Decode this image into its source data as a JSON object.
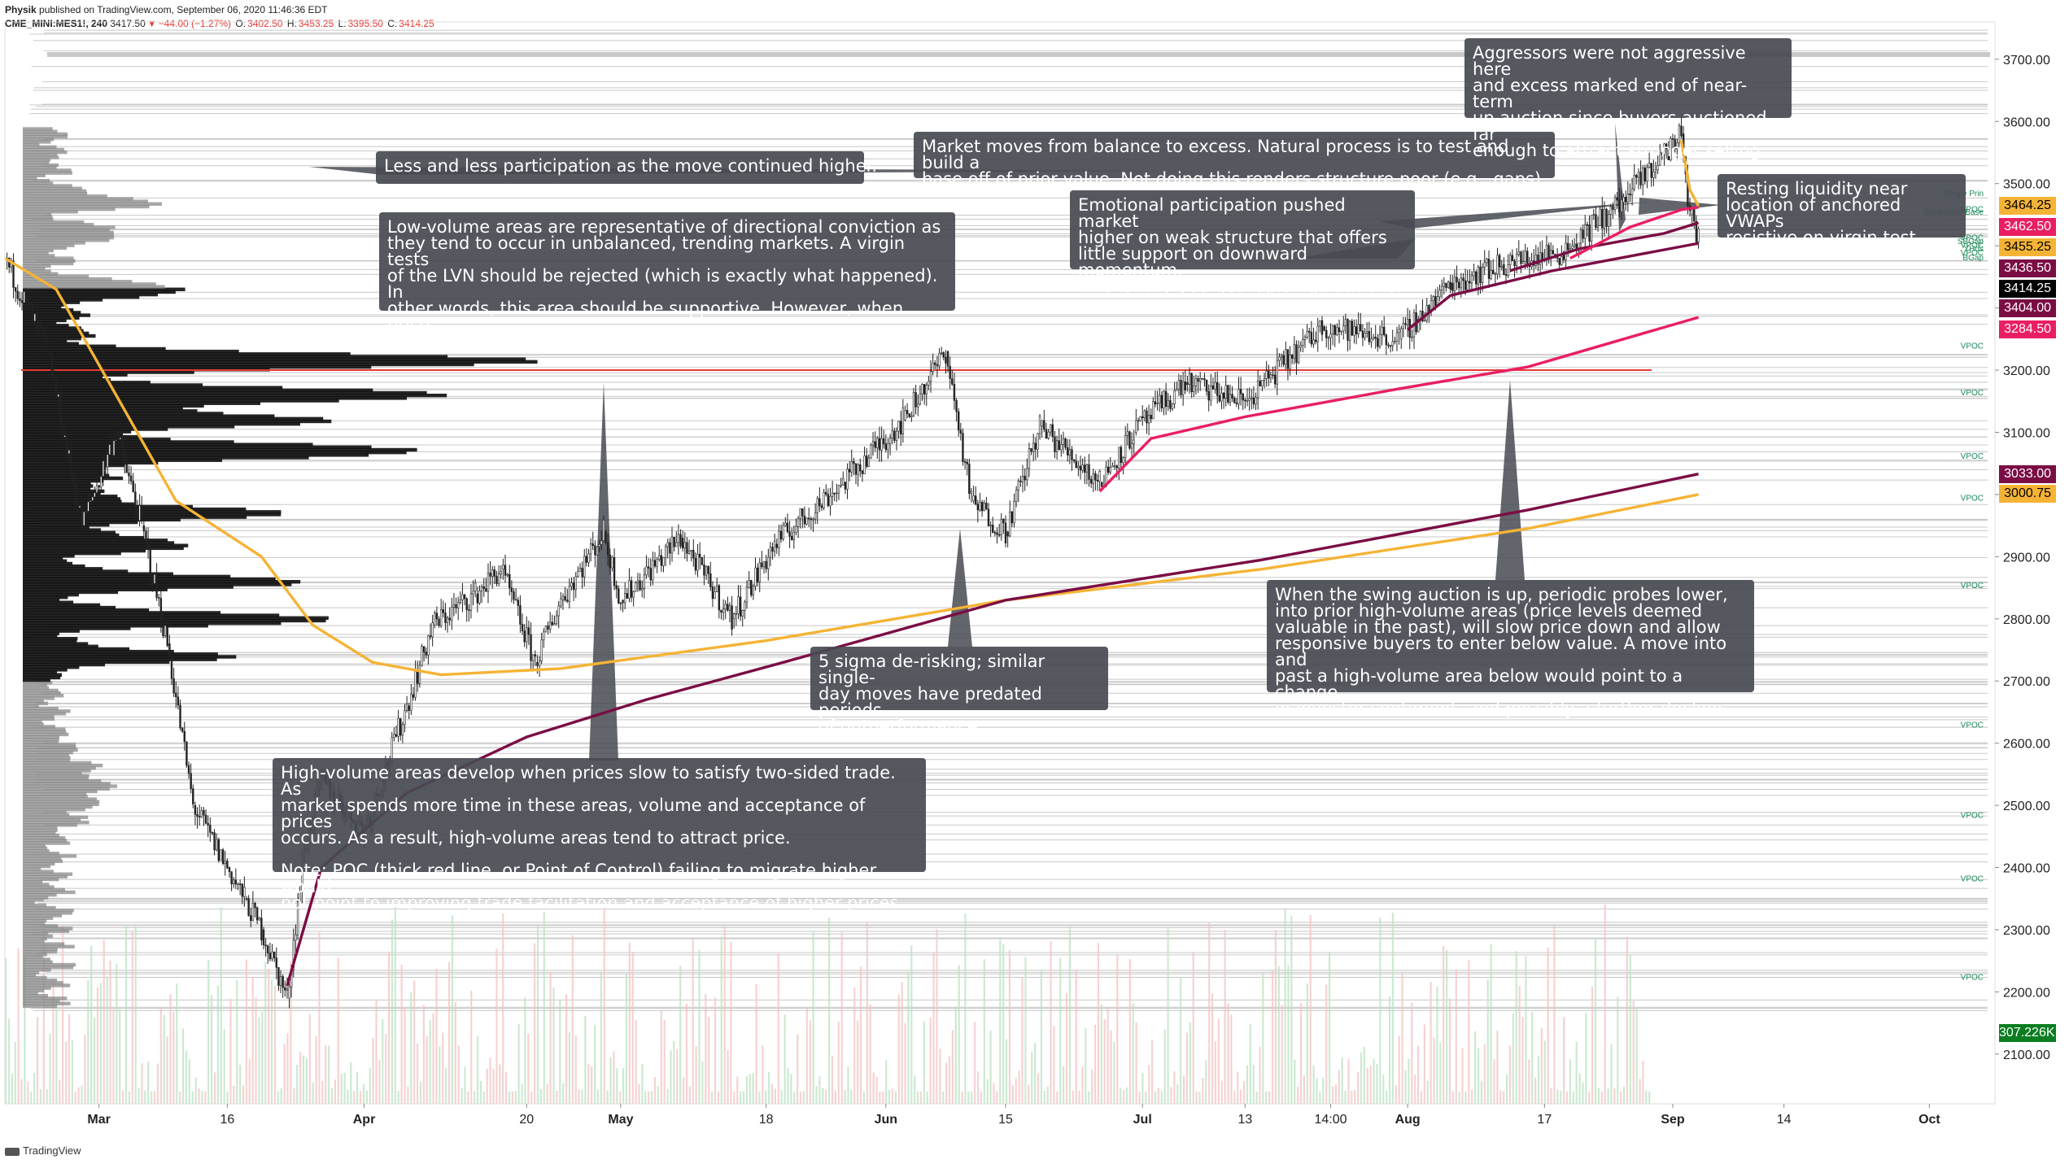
{
  "header": {
    "author": "Physik",
    "published": "published on TradingView.com, September 06, 2020 11:46:36 EDT",
    "symbol": "CME_MINI:MES1!, 240",
    "last": "3417.50",
    "change": "−44.00 (−1.27%)",
    "o_label": "O:",
    "o_value": "3402.50",
    "h_label": "H:",
    "h_value": "3453.25",
    "l_label": "L:",
    "l_value": "3395.50",
    "c_label": "C:",
    "c_value": "3414.25"
  },
  "footer": {
    "brand": "TradingView"
  },
  "colors": {
    "vwap_orange": "#f5b335",
    "vwap_maroon": "#7b0d45",
    "vwap_pink": "#e91e63",
    "poc_red": "#e53935",
    "annotation_bg": "#484a52"
  },
  "callouts": [
    {
      "id": "participation",
      "text": "Less and less participation as the move continued higher."
    },
    {
      "id": "lvn",
      "text": "Low-volume areas are representative of directional conviction as\nthey tend to occur in unbalanced, trending markets. A virgin tests\nof the LVN should be rejected (which is exactly what happened). In\nother words, this area should be supportive. However, when price\nauctions through this area, directional conviction has changed."
    },
    {
      "id": "balance",
      "text": "Market moves from balance to excess. Natural process is to test and build a\nbase off of prior value. Not doing this renders structure poor (e.g., gaps)."
    },
    {
      "id": "aggressors",
      "text": "Aggressors were not aggressive here\nand excess marked end of near-term\nup auction since buyers auctioned far\nenough to attract stronger selling."
    },
    {
      "id": "emotional",
      "text": "Emotional participation pushed market\nhigher on weak structure that offers\nlittle support on downward momentum.\nThis is why you get rapid liquidations."
    },
    {
      "id": "resting",
      "text": "Resting liquidity near\nlocation of anchored VWAPs\nresistive on virgin test."
    },
    {
      "id": "hva",
      "text": "High-volume areas develop when prices slow to satisfy two-sided trade. As\nmarket spends more time in these areas, volume and acceptance of prices\noccurs. As a result, high-volume areas tend to attract price.\n\nNote: POC (thick red line, or Point of Control) failing to migrate higher would\nnot point to improving trade facilitation and acceptance of higher prices."
    },
    {
      "id": "sigma",
      "text": "5 sigma de-risking; similar single-\nday moves have predated periods\nof outperformance."
    },
    {
      "id": "swing",
      "text": "When the swing auction is up, periodic probes lower,\ninto prior high-volume areas (price levels deemed\nvaluable in the past), will slow price down and allow\nresponsive buyers to enter below value. A move into and\npast a high-volume area below would point to a change\nin investor sentiment, and possibly a further decline."
    }
  ],
  "right_labels": [
    {
      "text": "Single Prin",
      "price": 3485
    },
    {
      "text": "VPOC",
      "price": 3460
    },
    {
      "text": "Supportive Base",
      "price": 3455.25
    },
    {
      "text": "VPOC",
      "price": 3414
    },
    {
      "text": "SBGap",
      "price": 3408
    },
    {
      "text": "VPOC",
      "price": 3402
    },
    {
      "text": "YHds",
      "price": 3396
    },
    {
      "text": "VPOC",
      "price": 3390
    },
    {
      "text": "BGap",
      "price": 3382
    },
    {
      "text": "VPOC",
      "price": 3240
    },
    {
      "text": "VPOC",
      "price": 3165
    },
    {
      "text": "VPOC",
      "price": 3063
    },
    {
      "text": "VPOC",
      "price": 2995
    },
    {
      "text": "VPOC",
      "price": 2855
    },
    {
      "text": "VPOC",
      "price": 2630
    },
    {
      "text": "VPOC",
      "price": 2485
    },
    {
      "text": "VPOC",
      "price": 2383
    },
    {
      "text": "VPOC",
      "price": 2225
    }
  ],
  "price_badges": [
    {
      "value": "3464.25",
      "price": 3464.25,
      "bg": "#f5b335",
      "fg": "#000000"
    },
    {
      "value": "3462.50",
      "price": 3430,
      "bg": "#e91e63",
      "fg": "#ffffff"
    },
    {
      "value": "3455.25",
      "price": 3397,
      "bg": "#f5b335",
      "fg": "#000000"
    },
    {
      "value": "3436.50",
      "price": 3364,
      "bg": "#7b0d45",
      "fg": "#ffffff"
    },
    {
      "value": "3414.25",
      "price": 3331,
      "bg": "#000000",
      "fg": "#ffffff"
    },
    {
      "value": "3404.00",
      "price": 3299,
      "bg": "#7b0d45",
      "fg": "#ffffff"
    },
    {
      "value": "3284.50",
      "price": 3266,
      "bg": "#e91e63",
      "fg": "#ffffff"
    },
    {
      "value": "3033.00",
      "price": 3033,
      "bg": "#7b0d45",
      "fg": "#ffffff"
    },
    {
      "value": "3000.75",
      "price": 3000.75,
      "bg": "#f5b335",
      "fg": "#000000"
    },
    {
      "value": "307.226K",
      "price": 2134,
      "bg": "#0a7d20",
      "fg": "#ffffff"
    }
  ],
  "chart_data": {
    "type": "line",
    "title": "",
    "xlabel": "",
    "ylabel": "",
    "ylim": [
      2020,
      3760
    ],
    "y_ticks": [
      "2100.00",
      "2200.00",
      "2300.00",
      "2400.00",
      "2500.00",
      "2600.00",
      "2700.00",
      "2800.00",
      "2900.00",
      "3000.00",
      "3100.00",
      "3200.00",
      "3300.00",
      "3400.00",
      "3500.00",
      "3600.00",
      "3700.00"
    ],
    "x_ticks": [
      "Mar",
      "16",
      "Apr",
      "20",
      "May",
      "18",
      "Jun",
      "15",
      "Jul",
      "13",
      "14:00",
      "Aug",
      "17",
      "Sep",
      "14",
      "Oct"
    ],
    "x_tick_dates": [
      "2020-03-01",
      "2020-03-16",
      "2020-04-01",
      "2020-04-20",
      "2020-05-01",
      "2020-05-18",
      "2020-06-01",
      "2020-06-15",
      "2020-07-01",
      "2020-07-13",
      "2020-07-23",
      "2020-08-01",
      "2020-08-17",
      "2020-09-01",
      "2020-09-14",
      "2020-10-01"
    ],
    "x_range": [
      "2020-02-19",
      "2020-10-08"
    ],
    "poc_level": 3200,
    "price_series": [
      {
        "x": "2020-02-19",
        "y": 3380
      },
      {
        "x": "2020-02-24",
        "y": 3230
      },
      {
        "x": "2020-02-28",
        "y": 2950
      },
      {
        "x": "2020-03-03",
        "y": 3100
      },
      {
        "x": "2020-03-06",
        "y": 2950
      },
      {
        "x": "2020-03-09",
        "y": 2760
      },
      {
        "x": "2020-03-12",
        "y": 2500
      },
      {
        "x": "2020-03-16",
        "y": 2400
      },
      {
        "x": "2020-03-18",
        "y": 2350
      },
      {
        "x": "2020-03-20",
        "y": 2300
      },
      {
        "x": "2020-03-23",
        "y": 2190
      },
      {
        "x": "2020-03-25",
        "y": 2430
      },
      {
        "x": "2020-03-27",
        "y": 2540
      },
      {
        "x": "2020-04-01",
        "y": 2460
      },
      {
        "x": "2020-04-06",
        "y": 2660
      },
      {
        "x": "2020-04-09",
        "y": 2790
      },
      {
        "x": "2020-04-14",
        "y": 2840
      },
      {
        "x": "2020-04-17",
        "y": 2880
      },
      {
        "x": "2020-04-21",
        "y": 2730
      },
      {
        "x": "2020-04-24",
        "y": 2830
      },
      {
        "x": "2020-04-29",
        "y": 2940
      },
      {
        "x": "2020-05-01",
        "y": 2830
      },
      {
        "x": "2020-05-08",
        "y": 2930
      },
      {
        "x": "2020-05-14",
        "y": 2800
      },
      {
        "x": "2020-05-19",
        "y": 2920
      },
      {
        "x": "2020-05-27",
        "y": 3020
      },
      {
        "x": "2020-06-03",
        "y": 3120
      },
      {
        "x": "2020-06-08",
        "y": 3230
      },
      {
        "x": "2020-06-11",
        "y": 2990
      },
      {
        "x": "2020-06-15",
        "y": 2940
      },
      {
        "x": "2020-06-19",
        "y": 3110
      },
      {
        "x": "2020-06-26",
        "y": 3020
      },
      {
        "x": "2020-06-30",
        "y": 3100
      },
      {
        "x": "2020-07-06",
        "y": 3180
      },
      {
        "x": "2020-07-13",
        "y": 3150
      },
      {
        "x": "2020-07-22",
        "y": 3270
      },
      {
        "x": "2020-07-31",
        "y": 3250
      },
      {
        "x": "2020-08-06",
        "y": 3340
      },
      {
        "x": "2020-08-12",
        "y": 3370
      },
      {
        "x": "2020-08-19",
        "y": 3390
      },
      {
        "x": "2020-08-26",
        "y": 3470
      },
      {
        "x": "2020-09-02",
        "y": 3580
      },
      {
        "x": "2020-09-03",
        "y": 3450
      },
      {
        "x": "2020-09-04",
        "y": 3414
      }
    ],
    "series": [
      {
        "color": "#f5b335",
        "points": [
          {
            "x": "2020-02-19",
            "y": 3380
          },
          {
            "x": "2020-02-25",
            "y": 3330
          },
          {
            "x": "2020-03-10",
            "y": 2990
          },
          {
            "x": "2020-03-20",
            "y": 2900
          },
          {
            "x": "2020-03-26",
            "y": 2790
          },
          {
            "x": "2020-04-02",
            "y": 2730
          },
          {
            "x": "2020-04-10",
            "y": 2710
          },
          {
            "x": "2020-04-24",
            "y": 2720
          },
          {
            "x": "2020-05-18",
            "y": 2765
          },
          {
            "x": "2020-06-15",
            "y": 2830
          },
          {
            "x": "2020-07-15",
            "y": 2880
          },
          {
            "x": "2020-08-15",
            "y": 2945
          },
          {
            "x": "2020-09-04",
            "y": 3000
          }
        ]
      },
      {
        "color": "#7b0d45",
        "points": [
          {
            "x": "2020-03-23",
            "y": 2210
          },
          {
            "x": "2020-03-27",
            "y": 2400
          },
          {
            "x": "2020-04-06",
            "y": 2520
          },
          {
            "x": "2020-04-20",
            "y": 2610
          },
          {
            "x": "2020-05-04",
            "y": 2670
          },
          {
            "x": "2020-05-20",
            "y": 2730
          },
          {
            "x": "2020-06-15",
            "y": 2830
          },
          {
            "x": "2020-07-15",
            "y": 2895
          },
          {
            "x": "2020-08-15",
            "y": 2975
          },
          {
            "x": "2020-09-04",
            "y": 3033
          }
        ]
      },
      {
        "color": "#e91e63",
        "points": [
          {
            "x": "2020-06-26",
            "y": 3005
          },
          {
            "x": "2020-07-02",
            "y": 3090
          },
          {
            "x": "2020-07-13",
            "y": 3125
          },
          {
            "x": "2020-07-31",
            "y": 3170
          },
          {
            "x": "2020-08-15",
            "y": 3205
          },
          {
            "x": "2020-09-04",
            "y": 3285
          }
        ]
      },
      {
        "color": "#7b0d45",
        "points": [
          {
            "x": "2020-08-01",
            "y": 3265
          },
          {
            "x": "2020-08-06",
            "y": 3320
          },
          {
            "x": "2020-08-18",
            "y": 3360
          },
          {
            "x": "2020-09-04",
            "y": 3404
          }
        ]
      },
      {
        "color": "#7b0d45",
        "points": [
          {
            "x": "2020-08-13",
            "y": 3360
          },
          {
            "x": "2020-08-21",
            "y": 3395
          },
          {
            "x": "2020-08-31",
            "y": 3420
          },
          {
            "x": "2020-09-04",
            "y": 3437
          }
        ]
      },
      {
        "color": "#e91e63",
        "points": [
          {
            "x": "2020-08-20",
            "y": 3380
          },
          {
            "x": "2020-08-27",
            "y": 3430
          },
          {
            "x": "2020-09-02",
            "y": 3458
          },
          {
            "x": "2020-09-04",
            "y": 3462
          }
        ]
      },
      {
        "color": "#f5b335",
        "points": [
          {
            "x": "2020-09-02",
            "y": 3570
          },
          {
            "x": "2020-09-03",
            "y": 3490
          },
          {
            "x": "2020-09-04",
            "y": 3464
          }
        ]
      }
    ]
  }
}
